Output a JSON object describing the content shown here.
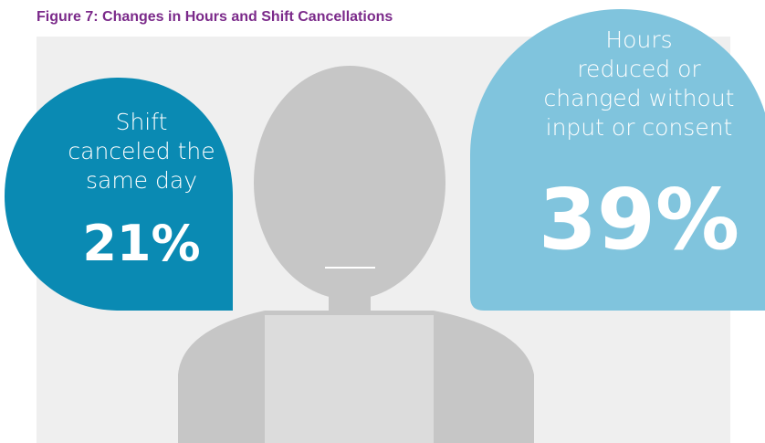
{
  "title": "Figure 7: Changes in Hours and Shift Cancellations",
  "callouts": [
    {
      "lines": [
        "Shift",
        "canceled the",
        "same day"
      ],
      "value": "21%"
    },
    {
      "lines": [
        "Hours",
        "reduced or",
        "changed without",
        "input or consent"
      ],
      "value": "39%"
    }
  ]
}
